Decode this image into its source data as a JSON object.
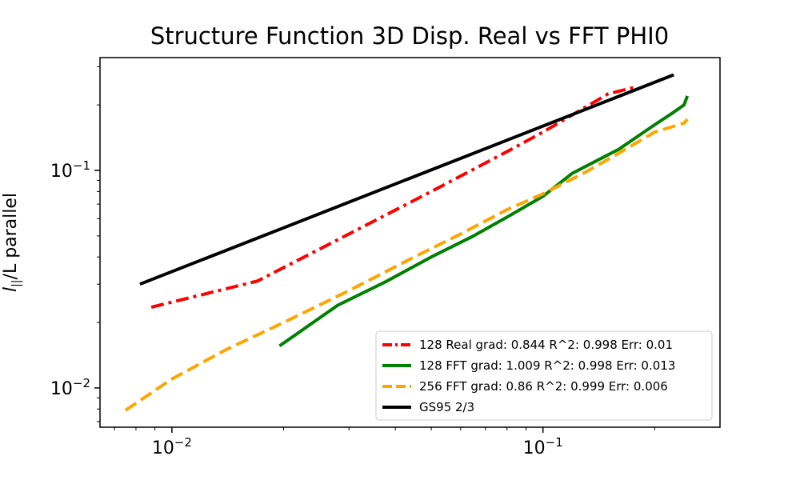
{
  "chart_data": {
    "type": "line",
    "title": "Structure Function 3D Disp. Real vs FFT PHI0",
    "ylabel_symbol": "l",
    "ylabel_subscript": "||",
    "ylabel_rest": "/L parallel",
    "xlabel": "",
    "xscale": "log",
    "yscale": "log",
    "xlim": [
      0.0064,
      0.3
    ],
    "ylim": [
      0.0066,
      0.33
    ],
    "x_ticks": [
      {
        "base": "10",
        "exp": "−2"
      },
      {
        "base": "10",
        "exp": "−1"
      }
    ],
    "y_ticks": [
      {
        "base": "10",
        "exp": "−2"
      },
      {
        "base": "10",
        "exp": "−1"
      }
    ],
    "legend_position": "lower-right",
    "series": [
      {
        "name": "128 Real grad: 0.844 R^2: 0.998  Err: 0.01",
        "color": "#ff0000",
        "style": "dashdot",
        "x": [
          0.0088,
          0.017,
          0.03,
          0.05,
          0.08,
          0.1,
          0.12,
          0.15,
          0.175
        ],
        "y": [
          0.0235,
          0.031,
          0.051,
          0.08,
          0.122,
          0.15,
          0.18,
          0.225,
          0.24
        ]
      },
      {
        "name": "128 FFT grad: 1.009 R^2: 0.998  Err: 0.013",
        "color": "#008000",
        "style": "solid",
        "x": [
          0.0195,
          0.028,
          0.038,
          0.05,
          0.065,
          0.08,
          0.1,
          0.12,
          0.16,
          0.2,
          0.225,
          0.24,
          0.245
        ],
        "y": [
          0.0156,
          0.024,
          0.031,
          0.04,
          0.05,
          0.061,
          0.076,
          0.097,
          0.125,
          0.162,
          0.185,
          0.2,
          0.22
        ]
      },
      {
        "name": "256 FFT grad: 0.86 R^2: 0.999  Err: 0.006",
        "color": "#ffa500",
        "style": "dashed",
        "x": [
          0.0075,
          0.01,
          0.014,
          0.02,
          0.03,
          0.045,
          0.06,
          0.08,
          0.1,
          0.13,
          0.16,
          0.2,
          0.24,
          0.245
        ],
        "y": [
          0.0079,
          0.011,
          0.015,
          0.02,
          0.028,
          0.04,
          0.051,
          0.066,
          0.078,
          0.098,
          0.12,
          0.15,
          0.165,
          0.172
        ]
      },
      {
        "name": "GS95 2/3",
        "color": "#000000",
        "style": "solid",
        "x": [
          0.0082,
          0.225
        ],
        "y": [
          0.03,
          0.275
        ]
      }
    ]
  }
}
